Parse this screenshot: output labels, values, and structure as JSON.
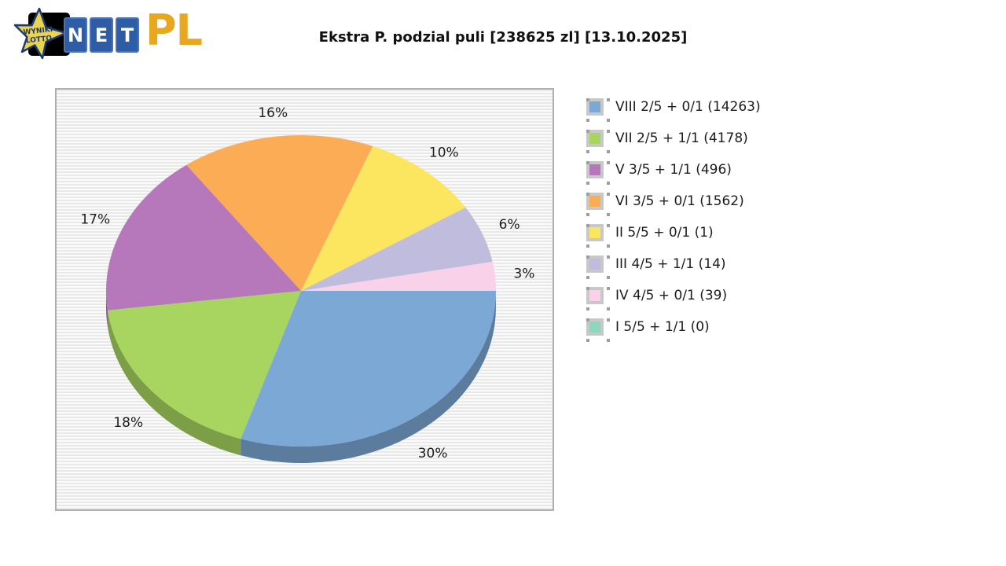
{
  "header": {
    "logo": {
      "star_line1": "WYNIKI",
      "star_line2": "LOTTO",
      "tiles": [
        "N",
        "E",
        "T"
      ],
      "suffix": "PL",
      "colors": {
        "star_fill": "#EAD34F",
        "star_stroke": "#1E3A72",
        "tile_bg": "#2E5DA6",
        "tile_border": "#4E73B4",
        "letter_color": "#FFFFFF",
        "suffix_color": "#E7A71F"
      }
    }
  },
  "chart_data": {
    "type": "pie",
    "title": "Ekstra P. podzial puli [238625 zl] [13.10.2025]",
    "pool_amount": "238625 zl",
    "date": "13.10.2025",
    "legend_position": "right",
    "style": "3d-pie, slices counter-clockwise from east in ascending percent order, percent labels outside",
    "series": [
      {
        "name": "VIII 2/5 + 0/1",
        "count": 14263,
        "percent": 30,
        "color": "#7CA8D5"
      },
      {
        "name": "VII 2/5 + 1/1",
        "count": 4178,
        "percent": 18,
        "color": "#A8D55F"
      },
      {
        "name": "V 3/5 + 1/1",
        "count": 496,
        "percent": 17,
        "color": "#B678BA"
      },
      {
        "name": "VI 3/5 + 0/1",
        "count": 1562,
        "percent": 16,
        "color": "#FCAC55"
      },
      {
        "name": "II 5/5 + 0/1",
        "count": 1,
        "percent": 10,
        "color": "#FDE65F"
      },
      {
        "name": "III 4/5 + 1/1",
        "count": 14,
        "percent": 6,
        "color": "#C0BCDE"
      },
      {
        "name": "IV 4/5 + 0/1",
        "count": 39,
        "percent": 3,
        "color": "#F9D1E8"
      },
      {
        "name": "I 5/5 + 1/1",
        "count": 0,
        "percent": 0,
        "color": "#8CD7BE"
      }
    ]
  }
}
